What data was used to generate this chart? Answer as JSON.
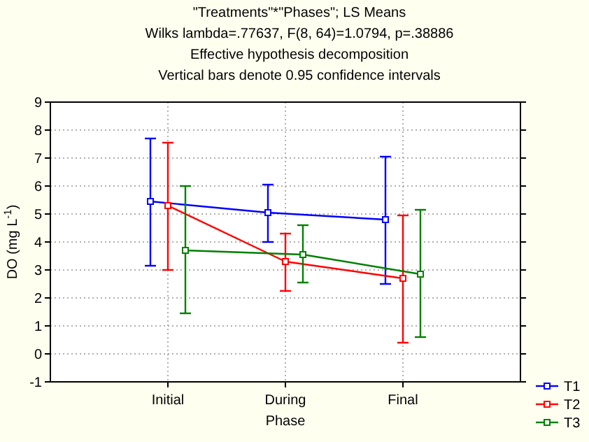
{
  "chart_data": {
    "type": "line",
    "title": "\"Treatments\"*\"Phases\"; LS Means",
    "subtitle": "Wilks lambda=.77637, F(8, 64)=1.0794, p=.38886",
    "annotations": [
      "Effective hypothesis decomposition",
      "Vertical bars denote 0.95 confidence intervals"
    ],
    "xlabel": "Phase",
    "ylabel": "DO (mg L$^{-1}$)",
    "categories": [
      "Initial",
      "During",
      "Final"
    ],
    "series": [
      {
        "name": "T1",
        "color": "#0000ff",
        "values": [
          5.45,
          5.05,
          4.8
        ],
        "errors": [
          [
            3.15,
            7.7
          ],
          [
            4.0,
            6.05
          ],
          [
            2.5,
            7.05
          ]
        ]
      },
      {
        "name": "T2",
        "color": "#ff0000",
        "values": [
          5.3,
          3.3,
          2.7
        ],
        "errors": [
          [
            3.0,
            7.55
          ],
          [
            2.25,
            4.3
          ],
          [
            0.4,
            4.95
          ]
        ]
      },
      {
        "name": "T3",
        "color": "#008000",
        "values": [
          3.7,
          3.55,
          2.85
        ],
        "errors": [
          [
            1.45,
            6.0
          ],
          [
            2.55,
            4.6
          ],
          [
            0.6,
            5.15
          ]
        ]
      }
    ],
    "ylim": [
      -1,
      9
    ],
    "yticks": [
      -1,
      0,
      1,
      2,
      3,
      4,
      5,
      6,
      7,
      8,
      9
    ],
    "grid": true,
    "legend": "bottom right",
    "marker": "square",
    "line_style": "solid"
  }
}
